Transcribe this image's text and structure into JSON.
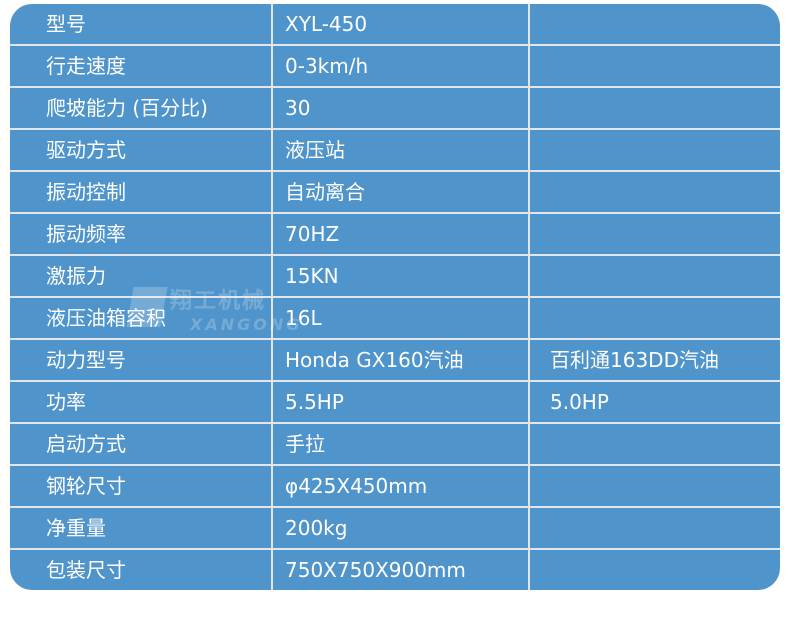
{
  "rows": [
    {
      "label": "型号",
      "v1": "XYL-450",
      "v2": ""
    },
    {
      "label": "行走速度",
      "v1": "0-3km/h",
      "v2": ""
    },
    {
      "label": "爬坡能力 (百分比)",
      "v1": "30",
      "v2": ""
    },
    {
      "label": "驱动方式",
      "v1": "液压站",
      "v2": ""
    },
    {
      "label": "振动控制",
      "v1": "自动离合",
      "v2": ""
    },
    {
      "label": "振动频率",
      "v1": "70HZ",
      "v2": ""
    },
    {
      "label": "激振力",
      "v1": "15KN",
      "v2": ""
    },
    {
      "label": "液压油箱容积",
      "v1": "16L",
      "v2": ""
    },
    {
      "label": "动力型号",
      "v1": "Honda GX160汽油",
      "v2": "百利通163DD汽油"
    },
    {
      "label": "功率",
      "v1": "5.5HP",
      "v2": "5.0HP"
    },
    {
      "label": "启动方式",
      "v1": "手拉",
      "v2": ""
    },
    {
      "label": "钢轮尺寸",
      "v1": "φ425X450mm",
      "v2": ""
    },
    {
      "label": "净重量",
      "v1": "200kg",
      "v2": ""
    },
    {
      "label": "包装尺寸",
      "v1": "750X750X900mm",
      "v2": ""
    }
  ],
  "watermark": {
    "cn": "翔工机械",
    "en": "XANGONG"
  },
  "colors": {
    "table_bg": "#4f94ca",
    "grid": "#e2e6ea",
    "text": "#ffffff"
  }
}
